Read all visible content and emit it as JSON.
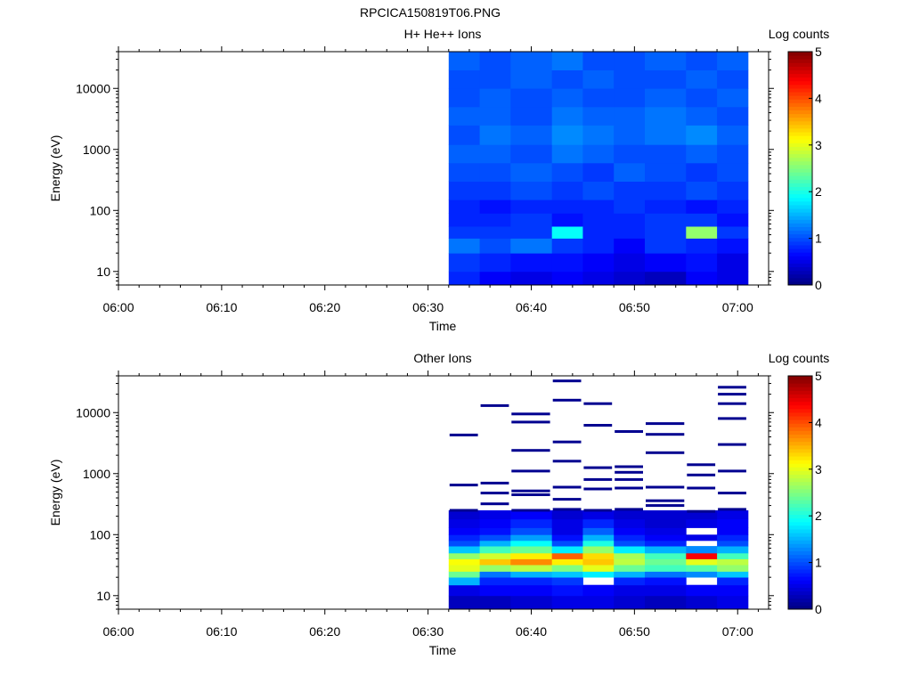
{
  "figure": {
    "title": "RPCICA150819T06.PNG"
  },
  "chart_data": [
    {
      "type": "heatmap",
      "title": "H+ He++ Ions",
      "xlabel": "Time",
      "ylabel": "Energy (eV)",
      "x_ticks": [
        "06:00",
        "06:10",
        "06:20",
        "06:30",
        "06:40",
        "06:50",
        "07:00"
      ],
      "x_range": [
        "06:00",
        "07:03"
      ],
      "y_scale": "log",
      "y_range": [
        6,
        40000
      ],
      "y_ticks": [
        "10",
        "100",
        "1000",
        "10000"
      ],
      "colorbar": {
        "label": "Log counts",
        "range": [
          0,
          5
        ],
        "ticks": [
          "0",
          "1",
          "2",
          "3",
          "4",
          "5"
        ]
      },
      "data_start": "06:32",
      "data_end": "07:01",
      "time_columns": [
        "06:32",
        "06:35",
        "06:38",
        "06:42",
        "06:45",
        "06:48",
        "06:51",
        "06:55",
        "06:58"
      ],
      "energy_bands": [
        {
          "low": 6,
          "high": 10,
          "values": [
            0.8,
            0.6,
            0.5,
            0.6,
            0.5,
            0.4,
            0.3,
            0.6,
            0.5
          ]
        },
        {
          "low": 10,
          "high": 20,
          "values": [
            0.9,
            0.8,
            0.7,
            0.7,
            0.6,
            0.5,
            0.6,
            0.7,
            0.5
          ]
        },
        {
          "low": 20,
          "high": 35,
          "values": [
            1.2,
            1.0,
            1.2,
            0.9,
            0.8,
            0.6,
            0.9,
            0.8,
            0.7
          ]
        },
        {
          "low": 35,
          "high": 55,
          "values": [
            0.9,
            0.9,
            0.9,
            1.9,
            0.8,
            0.8,
            0.9,
            2.6,
            0.9
          ]
        },
        {
          "low": 55,
          "high": 90,
          "values": [
            0.8,
            0.8,
            0.9,
            0.7,
            0.8,
            0.8,
            0.9,
            0.9,
            0.7
          ]
        },
        {
          "low": 90,
          "high": 150,
          "values": [
            0.8,
            0.7,
            0.8,
            0.8,
            0.8,
            0.9,
            0.8,
            0.7,
            0.8
          ]
        },
        {
          "low": 150,
          "high": 300,
          "values": [
            0.9,
            0.9,
            1.0,
            0.9,
            1.0,
            0.9,
            0.9,
            1.0,
            0.9
          ]
        },
        {
          "low": 300,
          "high": 600,
          "values": [
            1.0,
            1.0,
            1.1,
            1.0,
            0.9,
            1.1,
            1.0,
            0.9,
            1.0
          ]
        },
        {
          "low": 600,
          "high": 1200,
          "values": [
            1.1,
            1.1,
            1.0,
            1.2,
            1.1,
            1.0,
            1.0,
            1.1,
            1.0
          ]
        },
        {
          "low": 1200,
          "high": 2500,
          "values": [
            1.0,
            1.2,
            1.1,
            1.3,
            1.2,
            1.1,
            1.2,
            1.3,
            1.1
          ]
        },
        {
          "low": 2500,
          "high": 5000,
          "values": [
            1.1,
            1.1,
            1.0,
            1.2,
            1.1,
            1.1,
            1.2,
            1.1,
            1.0
          ]
        },
        {
          "low": 5000,
          "high": 10000,
          "values": [
            1.0,
            1.1,
            1.0,
            1.1,
            1.0,
            1.0,
            1.1,
            1.0,
            1.1
          ]
        },
        {
          "low": 10000,
          "high": 20000,
          "values": [
            1.0,
            1.0,
            1.1,
            1.0,
            1.1,
            1.0,
            1.0,
            1.1,
            1.0
          ]
        },
        {
          "low": 20000,
          "high": 40000,
          "values": [
            1.1,
            1.0,
            1.1,
            1.2,
            1.0,
            1.0,
            1.1,
            1.0,
            1.1
          ]
        }
      ]
    },
    {
      "type": "heatmap",
      "title": "Other Ions",
      "xlabel": "Time",
      "ylabel": "Energy (eV)",
      "x_ticks": [
        "06:00",
        "06:10",
        "06:20",
        "06:30",
        "06:40",
        "06:50",
        "07:00"
      ],
      "x_range": [
        "06:00",
        "07:03"
      ],
      "y_scale": "log",
      "y_range": [
        6,
        40000
      ],
      "y_ticks": [
        "10",
        "100",
        "1000",
        "10000"
      ],
      "colorbar": {
        "label": "Log counts",
        "range": [
          0,
          5
        ],
        "ticks": [
          "0",
          "1",
          "2",
          "3",
          "4",
          "5"
        ]
      },
      "data_start": "06:32",
      "data_end": "07:01",
      "time_columns": [
        "06:32",
        "06:35",
        "06:38",
        "06:42",
        "06:45",
        "06:48",
        "06:51",
        "06:55",
        "06:58"
      ],
      "energy_bands": [
        {
          "low": 6,
          "high": 10,
          "values": [
            0.3,
            0.3,
            0.4,
            0.5,
            0.5,
            0.4,
            0.3,
            0.4,
            0.5
          ]
        },
        {
          "low": 10,
          "high": 15,
          "values": [
            0.5,
            0.6,
            0.6,
            0.7,
            0.6,
            0.5,
            0.5,
            0.6,
            0.6
          ]
        },
        {
          "low": 15,
          "high": 20,
          "values": [
            1.5,
            0.8,
            0.8,
            0.9,
            null,
            0.8,
            0.7,
            null,
            0.8
          ]
        },
        {
          "low": 20,
          "high": 25,
          "values": [
            2.4,
            1.2,
            1.5,
            1.6,
            1.8,
            1.5,
            1.2,
            1.3,
            1.6
          ]
        },
        {
          "low": 25,
          "high": 32,
          "values": [
            3.0,
            2.6,
            2.8,
            2.5,
            3.0,
            2.4,
            2.2,
            2.3,
            2.6
          ]
        },
        {
          "low": 32,
          "high": 40,
          "values": [
            3.1,
            3.4,
            3.7,
            3.2,
            3.4,
            2.8,
            2.4,
            3.0,
            2.8
          ]
        },
        {
          "low": 40,
          "high": 50,
          "values": [
            2.6,
            2.9,
            3.2,
            3.9,
            3.3,
            2.7,
            2.2,
            4.4,
            2.2
          ]
        },
        {
          "low": 50,
          "high": 65,
          "values": [
            1.6,
            2.2,
            2.4,
            1.8,
            2.6,
            1.8,
            1.5,
            1.3,
            1.5
          ]
        },
        {
          "low": 65,
          "high": 80,
          "values": [
            1.0,
            1.5,
            1.9,
            1.0,
            2.0,
            1.0,
            0.8,
            null,
            1.0
          ]
        },
        {
          "low": 80,
          "high": 100,
          "values": [
            0.8,
            1.0,
            1.4,
            0.7,
            1.5,
            0.8,
            0.6,
            0.5,
            0.8
          ]
        },
        {
          "low": 100,
          "high": 130,
          "values": [
            0.6,
            0.7,
            1.0,
            0.5,
            1.1,
            0.6,
            0.5,
            null,
            0.6
          ]
        },
        {
          "low": 130,
          "high": 180,
          "values": [
            0.5,
            0.6,
            0.8,
            0.5,
            0.8,
            0.5,
            0.4,
            0.5,
            0.6
          ]
        },
        {
          "low": 180,
          "high": 250,
          "values": [
            0.4,
            0.5,
            0.6,
            0.4,
            0.5,
            0.4,
            0.4,
            0.4,
            0.5
          ]
        }
      ],
      "sparse_counts": [
        {
          "time": "06:32",
          "energies": [
            250,
            650,
            4300
          ]
        },
        {
          "time": "06:35",
          "energies": [
            320,
            480,
            700,
            13000
          ]
        },
        {
          "time": "06:38",
          "energies": [
            250,
            450,
            520,
            1100,
            2400,
            7000,
            9500
          ]
        },
        {
          "time": "06:42",
          "energies": [
            260,
            380,
            600,
            1600,
            3300,
            16000,
            33000
          ]
        },
        {
          "time": "06:45",
          "energies": [
            250,
            560,
            800,
            1250,
            6200,
            14000
          ]
        },
        {
          "time": "06:48",
          "energies": [
            260,
            580,
            800,
            1050,
            1300,
            4900
          ]
        },
        {
          "time": "06:51",
          "energies": [
            300,
            360,
            600,
            2200,
            4400,
            6600
          ]
        },
        {
          "time": "06:55",
          "energies": [
            240,
            580,
            950,
            1400
          ]
        },
        {
          "time": "06:58",
          "energies": [
            260,
            480,
            1100,
            3000,
            8000,
            14000,
            20000,
            26000
          ]
        }
      ]
    }
  ]
}
